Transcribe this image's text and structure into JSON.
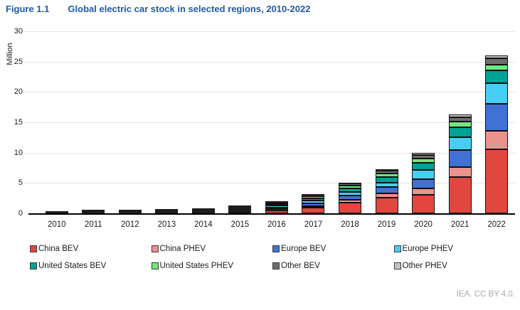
{
  "figure": {
    "label": "Figure 1.1",
    "title": "Global electric car stock in selected regions, 2010-2022"
  },
  "footer": {
    "credit": "IEA. CC BY 4.0."
  },
  "colors": {
    "title_blue": "#1F5AA8",
    "segment_outline": "#101010",
    "gridline": "#E3E3E3",
    "axis": "#000000",
    "footer_gray": "#A9A9A9"
  },
  "chart_data": {
    "type": "bar",
    "stacked": true,
    "title": "Global electric car stock in selected regions, 2010-2022",
    "xlabel": "",
    "ylabel": "Million",
    "ylim": [
      0,
      30
    ],
    "yticks": [
      0,
      5,
      10,
      15,
      20,
      25,
      30
    ],
    "grid": true,
    "legend_position": "bottom",
    "categories": [
      "2010",
      "2011",
      "2012",
      "2013",
      "2014",
      "2015",
      "2016",
      "2017",
      "2018",
      "2019",
      "2020",
      "2021",
      "2022"
    ],
    "series": [
      {
        "name": "China BEV",
        "color": "#E2473F",
        "values": [
          0.005,
          0.007,
          0.016,
          0.03,
          0.08,
          0.23,
          0.49,
          0.95,
          1.79,
          2.58,
          3.1,
          6.0,
          10.5
        ]
      },
      {
        "name": "China PHEV",
        "color": "#EC928E",
        "values": [
          0,
          0.001,
          0.003,
          0.005,
          0.03,
          0.09,
          0.16,
          0.28,
          0.47,
          0.76,
          1.0,
          1.6,
          3.1
        ]
      },
      {
        "name": "Europe BEV",
        "color": "#3F72D4",
        "values": [
          0.005,
          0.015,
          0.04,
          0.07,
          0.12,
          0.19,
          0.29,
          0.41,
          0.66,
          0.97,
          1.55,
          2.8,
          4.4
        ]
      },
      {
        "name": "Europe PHEV",
        "color": "#45CFF6",
        "values": [
          0,
          0.002,
          0.01,
          0.03,
          0.08,
          0.19,
          0.31,
          0.42,
          0.57,
          0.77,
          1.5,
          2.2,
          3.45
        ]
      },
      {
        "name": "United States BEV",
        "color": "#00A296",
        "values": [
          0.004,
          0.01,
          0.03,
          0.08,
          0.14,
          0.21,
          0.3,
          0.4,
          0.63,
          0.88,
          1.2,
          1.6,
          2.1
        ]
      },
      {
        "name": "United States PHEV",
        "color": "#6FE87F",
        "values": [
          0.002,
          0.01,
          0.04,
          0.09,
          0.13,
          0.19,
          0.27,
          0.36,
          0.47,
          0.57,
          0.65,
          0.9,
          1.0
        ]
      },
      {
        "name": "Other BEV",
        "color": "#6E6E6E",
        "values": [
          0.003,
          0.01,
          0.02,
          0.03,
          0.05,
          0.08,
          0.12,
          0.2,
          0.35,
          0.5,
          0.65,
          0.75,
          0.95
        ]
      },
      {
        "name": "Other PHEV",
        "color": "#C4C4C4",
        "values": [
          0,
          0.002,
          0.005,
          0.01,
          0.02,
          0.04,
          0.06,
          0.1,
          0.15,
          0.2,
          0.3,
          0.45,
          0.5
        ]
      }
    ]
  }
}
